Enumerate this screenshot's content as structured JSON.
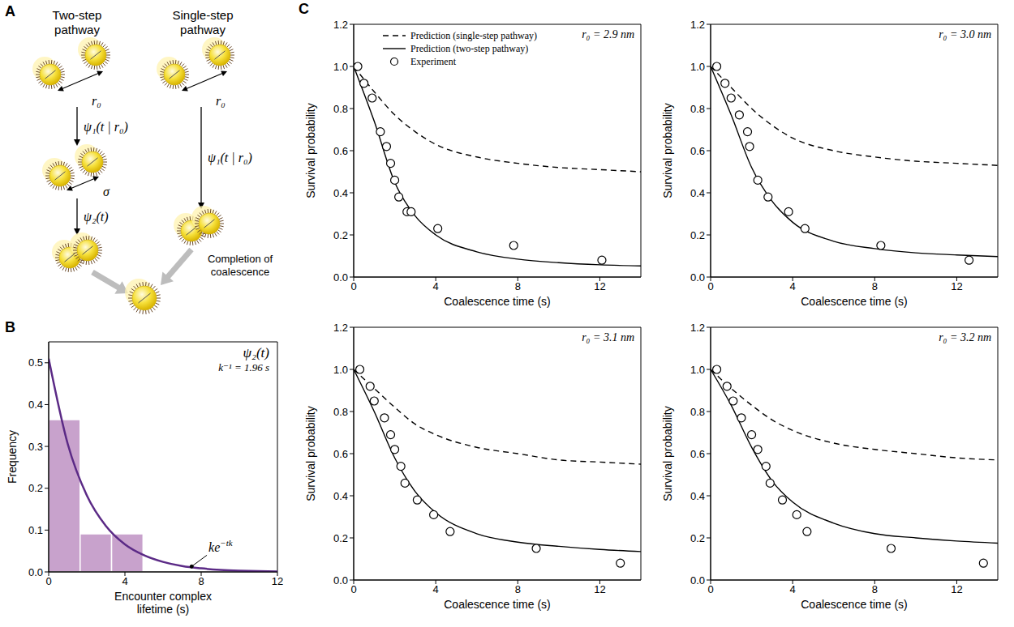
{
  "diagram": {
    "panel_label": "A",
    "pathways": [
      {
        "title": "Two-step pathway",
        "distances": [
          "r₀",
          "σ"
        ],
        "steps": [
          "ψ₁(t | r₀)",
          "ψ₂(t)"
        ]
      },
      {
        "title": "Single-step pathway",
        "distances": [
          "r₀"
        ],
        "steps": [
          "ψ₁(t | r₀)"
        ]
      }
    ],
    "outcome": "Completion of coalescence"
  },
  "chart_data": [
    {
      "panel_label": "B",
      "type": "histogram",
      "title": "ψ₂(t)",
      "subtitle": "k⁻¹ = 1.96 s",
      "x_label": "Encounter complex lifetime (s)",
      "y_label": "Frequency",
      "bins": [
        0,
        1.65,
        3.3,
        4.95
      ],
      "counts": [
        0.364,
        0.091,
        0.091
      ],
      "color": "#c8a2cc",
      "series": [
        {
          "type": "line",
          "color": "#5b2a86",
          "x": [
            0,
            1,
            2,
            3,
            4,
            5,
            6,
            7,
            8,
            9,
            10,
            11,
            12
          ],
          "values": [
            0.51,
            0.306,
            0.183,
            0.11,
            0.066,
            0.04,
            0.024,
            0.014,
            0.0085,
            0.005,
            0.003,
            0.0018,
            0.001
          ]
        }
      ],
      "annotations": [
        {
          "text": "ke",
          "superscript": "−tk",
          "x": 8.3,
          "y": 0.04,
          "arrow_to": [
            7.5,
            0.013
          ]
        }
      ],
      "xlim": [
        0,
        12
      ],
      "xticks": [
        0,
        4,
        8,
        12
      ],
      "ylim": [
        0,
        0.55
      ],
      "yticks": [
        {
          "value": 0,
          "label": "0.0"
        },
        0.1,
        0.2,
        0.3,
        0.4,
        0.5
      ]
    },
    {
      "panel_label": "C",
      "type": "line",
      "title": "r₀ = 2.9 nm",
      "x_label": "Coalescence time (s)",
      "y_label": "Survival probability",
      "legend": "upper left",
      "xlim": [
        0,
        14
      ],
      "xticks": [
        0,
        4,
        8,
        12
      ],
      "ylim": [
        0,
        1.2
      ],
      "yticks": [
        {
          "value": 0,
          "label": "0.0"
        },
        0.2,
        0.4,
        0.6,
        0.8,
        {
          "value": 1,
          "label": "1.0"
        },
        1.2
      ],
      "series": [
        {
          "name": "Prediction (single-step pathway)",
          "type": "line",
          "line_style": "dashed",
          "color": "#000000",
          "x": [
            0,
            1,
            2,
            3,
            4,
            6,
            8,
            10,
            12,
            14
          ],
          "values": [
            1,
            0.88,
            0.77,
            0.69,
            0.63,
            0.57,
            0.54,
            0.52,
            0.51,
            0.5
          ]
        },
        {
          "name": "Prediction (two-step pathway)",
          "type": "line",
          "line_style": "solid",
          "color": "#000000",
          "x": [
            0,
            1,
            2,
            3,
            4,
            6,
            8,
            10,
            12,
            14
          ],
          "values": [
            1,
            0.74,
            0.45,
            0.29,
            0.2,
            0.12,
            0.085,
            0.068,
            0.058,
            0.053
          ]
        },
        {
          "name": "Experiment",
          "type": "scatter",
          "marker": "circle",
          "color": "#000000",
          "x": [
            0.2,
            0.5,
            0.9,
            1.3,
            1.6,
            1.8,
            2.0,
            2.2,
            2.6,
            2.8,
            4.1,
            7.8,
            12.1
          ],
          "values": [
            1,
            0.92,
            0.85,
            0.69,
            0.62,
            0.54,
            0.46,
            0.38,
            0.31,
            0.31,
            0.23,
            0.15,
            0.08
          ]
        }
      ]
    },
    {
      "type": "line",
      "title": "r₀ = 3.0 nm",
      "x_label": "Coalescence time (s)",
      "y_label": "Survival probability",
      "xlim": [
        0,
        14
      ],
      "xticks": [
        0,
        4,
        8,
        12
      ],
      "ylim": [
        0,
        1.2
      ],
      "yticks": [
        {
          "value": 0,
          "label": "0.0"
        },
        0.2,
        0.4,
        0.6,
        0.8,
        {
          "value": 1,
          "label": "1.0"
        },
        1.2
      ],
      "series": [
        {
          "type": "line",
          "line_style": "dashed",
          "color": "#000000",
          "x": [
            0,
            1,
            2,
            3,
            4,
            6,
            8,
            10,
            12,
            14
          ],
          "values": [
            1,
            0.9,
            0.8,
            0.72,
            0.66,
            0.6,
            0.57,
            0.55,
            0.54,
            0.53
          ]
        },
        {
          "type": "line",
          "line_style": "solid",
          "color": "#000000",
          "x": [
            0,
            1,
            2,
            3,
            4,
            6,
            8,
            10,
            12,
            14
          ],
          "values": [
            1,
            0.77,
            0.52,
            0.36,
            0.26,
            0.17,
            0.135,
            0.115,
            0.105,
            0.097
          ]
        },
        {
          "type": "scatter",
          "marker": "circle",
          "color": "#000000",
          "x": [
            0.3,
            0.7,
            1.0,
            1.4,
            1.8,
            1.9,
            2.3,
            2.8,
            3.8,
            4.6,
            8.3,
            12.6
          ],
          "values": [
            1,
            0.92,
            0.85,
            0.77,
            0.69,
            0.62,
            0.46,
            0.38,
            0.31,
            0.23,
            0.15,
            0.08
          ]
        }
      ]
    },
    {
      "type": "line",
      "title": "r₀ = 3.1 nm",
      "x_label": "Coalescence time (s)",
      "y_label": "Survival probability",
      "xlim": [
        0,
        14
      ],
      "xticks": [
        0,
        4,
        8,
        12
      ],
      "ylim": [
        0,
        1.2
      ],
      "yticks": [
        {
          "value": 0,
          "label": "0.0"
        },
        0.2,
        0.4,
        0.6,
        0.8,
        {
          "value": 1,
          "label": "1.0"
        },
        1.2
      ],
      "series": [
        {
          "type": "line",
          "line_style": "dashed",
          "color": "#000000",
          "x": [
            0,
            1,
            2,
            3,
            4,
            6,
            8,
            10,
            12,
            14
          ],
          "values": [
            1,
            0.91,
            0.82,
            0.74,
            0.69,
            0.63,
            0.6,
            0.57,
            0.56,
            0.55
          ]
        },
        {
          "type": "line",
          "line_style": "solid",
          "color": "#000000",
          "x": [
            0,
            1,
            2,
            3,
            4,
            6,
            8,
            10,
            12,
            14
          ],
          "values": [
            1,
            0.8,
            0.58,
            0.42,
            0.32,
            0.22,
            0.18,
            0.16,
            0.145,
            0.135
          ]
        },
        {
          "type": "scatter",
          "marker": "circle",
          "color": "#000000",
          "x": [
            0.3,
            0.8,
            1.0,
            1.5,
            1.8,
            2.0,
            2.3,
            2.5,
            3.1,
            3.9,
            4.7,
            8.9,
            13.0
          ],
          "values": [
            1,
            0.92,
            0.85,
            0.77,
            0.69,
            0.62,
            0.54,
            0.46,
            0.38,
            0.31,
            0.23,
            0.15,
            0.08
          ]
        }
      ]
    },
    {
      "type": "line",
      "title": "r₀ = 3.2 nm",
      "x_label": "Coalescence time (s)",
      "y_label": "Survival probability",
      "xlim": [
        0,
        14
      ],
      "xticks": [
        0,
        4,
        8,
        12
      ],
      "ylim": [
        0,
        1.2
      ],
      "yticks": [
        {
          "value": 0,
          "label": "0.0"
        },
        0.2,
        0.4,
        0.6,
        0.8,
        {
          "value": 1,
          "label": "1.0"
        },
        1.2
      ],
      "series": [
        {
          "type": "line",
          "line_style": "dashed",
          "color": "#000000",
          "x": [
            0,
            1,
            2,
            3,
            4,
            6,
            8,
            10,
            12,
            14
          ],
          "values": [
            1,
            0.91,
            0.83,
            0.76,
            0.71,
            0.65,
            0.62,
            0.6,
            0.58,
            0.57
          ]
        },
        {
          "type": "line",
          "line_style": "solid",
          "color": "#000000",
          "x": [
            0,
            1,
            2,
            3,
            4,
            6,
            8,
            10,
            12,
            14
          ],
          "values": [
            1,
            0.83,
            0.63,
            0.47,
            0.37,
            0.27,
            0.22,
            0.2,
            0.185,
            0.175
          ]
        },
        {
          "type": "scatter",
          "marker": "circle",
          "color": "#000000",
          "x": [
            0.3,
            0.8,
            1.1,
            1.5,
            2.0,
            2.3,
            2.7,
            2.9,
            3.5,
            4.2,
            4.7,
            8.8,
            13.3
          ],
          "values": [
            1,
            0.92,
            0.85,
            0.77,
            0.69,
            0.62,
            0.54,
            0.46,
            0.38,
            0.31,
            0.23,
            0.15,
            0.08
          ]
        }
      ]
    }
  ]
}
